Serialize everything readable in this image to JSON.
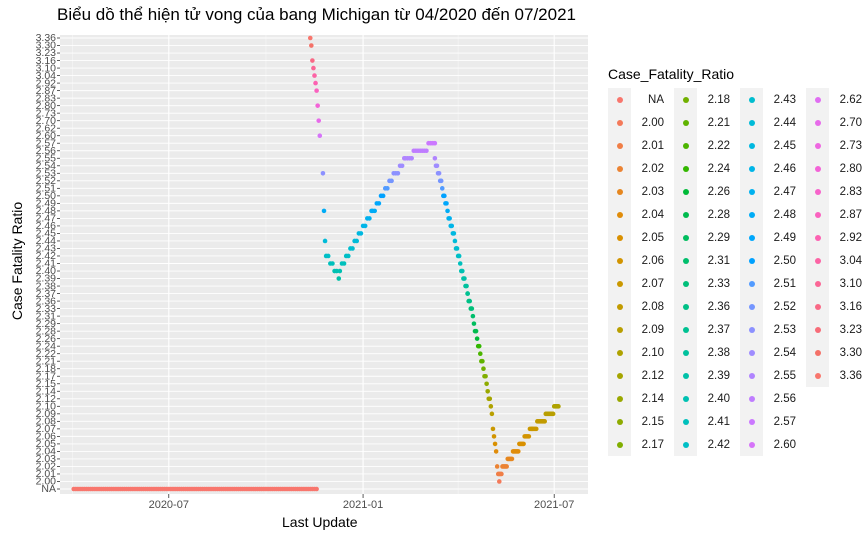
{
  "chart_data": {
    "type": "scatter",
    "title": "Biểu dồ thể hiện tử vong của bang Michigan từ 04/2020 đến 07/2021",
    "xlabel": "Last Update",
    "ylabel": "Case Fatality Ratio",
    "x_ticks": [
      "2020-07",
      "2021-01",
      "2021-07"
    ],
    "y_ticks": [
      "NA",
      "2.00",
      "2.01",
      "2.02",
      "2.03",
      "2.04",
      "2.05",
      "2.06",
      "2.07",
      "2.08",
      "2.09",
      "2.10",
      "2.12",
      "2.14",
      "2.15",
      "2.17",
      "2.18",
      "2.21",
      "2.22",
      "2.24",
      "2.26",
      "2.28",
      "2.29",
      "2.31",
      "2.33",
      "2.36",
      "2.37",
      "2.38",
      "2.39",
      "2.40",
      "2.41",
      "2.42",
      "2.43",
      "2.44",
      "2.45",
      "2.46",
      "2.47",
      "2.48",
      "2.49",
      "2.50",
      "2.51",
      "2.52",
      "2.53",
      "2.54",
      "2.55",
      "2.56",
      "2.57",
      "2.60",
      "2.62",
      "2.70",
      "2.73",
      "2.80",
      "2.83",
      "2.87",
      "2.92",
      "3.04",
      "3.10",
      "3.16",
      "3.23",
      "3.30",
      "3.36"
    ],
    "x_range": [
      "2020-03-20",
      "2021-08-02"
    ],
    "grid": true,
    "legend_title": "Case_Fatality_Ratio",
    "legend_position": "right",
    "colors": [
      "#F8766D",
      "#F47A5A",
      "#F07E46",
      "#EB8333",
      "#E6871F",
      "#E08C0A",
      "#D99000",
      "#D29400",
      "#CA9800",
      "#C29B00",
      "#B99F00",
      "#AFA200",
      "#A5A500",
      "#9AA800",
      "#8EAB00",
      "#80AE00",
      "#71B000",
      "#60B300",
      "#4CB500",
      "#33B700",
      "#00BA38",
      "#00BB4E",
      "#00BD5E",
      "#00BE6C",
      "#00BF7A",
      "#00C086",
      "#00C192",
      "#00C19D",
      "#00C1A8",
      "#00C1B2",
      "#00C0BC",
      "#00BFC6",
      "#00BDCF",
      "#00BBD8",
      "#00B8E0",
      "#00B5E8",
      "#00B1EF",
      "#00ACF6",
      "#00A7FC",
      "#00A1FF",
      "#529BFF",
      "#7596FF",
      "#8C91FF",
      "#9F8CFF",
      "#B084FF",
      "#BF7DFF",
      "#CB78FF",
      "#D674F9",
      "#E06EF2",
      "#E76BEA",
      "#EE67E1",
      "#F363D7",
      "#F763CB",
      "#FA62BF",
      "#FC62B2",
      "#FC64A5",
      "#FB6696",
      "#F96986",
      "#F76C78",
      "#F47168",
      "#F8766D"
    ],
    "segments": [
      {
        "start": "2020-04-02",
        "end": "2020-11-19",
        "value": "NA",
        "step_days": 2
      },
      {
        "start": "2020-11-12",
        "end": "2020-11-21",
        "value_range": [
          3.36,
          2.6
        ],
        "step_days": 1
      },
      {
        "start": "2020-11-24",
        "end": "2020-11-26",
        "value_range": [
          2.53,
          2.44
        ],
        "step_days": 1
      },
      {
        "start": "2020-11-27",
        "end": "2020-12-10",
        "value_range": [
          2.42,
          2.39
        ],
        "step_days": 2
      },
      {
        "start": "2020-12-10",
        "end": "2021-01-10",
        "value_range": [
          2.4,
          2.48
        ],
        "step_days": 2
      },
      {
        "start": "2021-01-10",
        "end": "2021-02-10",
        "value_range": [
          2.48,
          2.55
        ],
        "step_days": 2
      },
      {
        "start": "2021-02-10",
        "end": "2021-03-10",
        "value_range": [
          2.55,
          2.57
        ],
        "step_days": 2
      },
      {
        "start": "2021-03-10",
        "end": "2021-04-10",
        "value_range": [
          2.55,
          2.37
        ],
        "step_days": 1
      },
      {
        "start": "2021-04-10",
        "end": "2021-05-10",
        "value_range": [
          2.37,
          2.0
        ],
        "step_days": 1
      },
      {
        "start": "2021-05-10",
        "end": "2021-06-10",
        "value_range": [
          2.01,
          2.07
        ],
        "step_days": 1
      },
      {
        "start": "2021-06-10",
        "end": "2021-07-05",
        "value_range": [
          2.07,
          2.1
        ],
        "step_days": 1
      }
    ]
  }
}
